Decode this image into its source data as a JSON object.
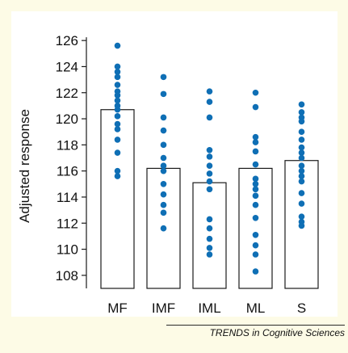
{
  "footer": {
    "journal": "TRENDS in Cognitive Sciences"
  },
  "chart_data": {
    "type": "bar",
    "title": "",
    "xlabel": "",
    "ylabel": "Adjusted response",
    "ylim": [
      107,
      127
    ],
    "yticks": [
      108,
      110,
      112,
      114,
      116,
      118,
      120,
      122,
      124,
      126
    ],
    "categories": [
      "MF",
      "IMF",
      "IML",
      "ML",
      "S"
    ],
    "values": [
      120.7,
      116.2,
      115.1,
      116.2,
      116.8
    ],
    "points": [
      [
        125.6,
        124.0,
        123.6,
        123.2,
        122.6,
        122.1,
        121.8,
        121.4,
        121.0,
        120.7,
        120.2,
        119.6,
        119.2,
        118.4,
        117.4,
        116.0,
        115.6
      ],
      [
        123.2,
        121.9,
        120.1,
        119.1,
        118.0,
        117.0,
        116.4,
        116.0,
        115.0,
        114.2,
        113.4,
        112.8,
        111.6
      ],
      [
        122.1,
        121.3,
        120.1,
        117.6,
        117.1,
        116.4,
        115.8,
        115.2,
        114.6,
        112.3,
        111.6,
        110.8,
        110.1,
        109.6
      ],
      [
        122.0,
        120.9,
        118.6,
        118.2,
        117.5,
        116.5,
        115.4,
        115.0,
        114.6,
        114.1,
        113.4,
        112.4,
        111.1,
        110.3,
        109.6,
        108.3
      ],
      [
        121.1,
        120.5,
        120.1,
        119.8,
        119.0,
        118.4,
        117.8,
        117.4,
        117.0,
        116.4,
        116.0,
        115.6,
        115.2,
        114.3,
        113.5,
        112.5,
        112.1,
        111.8
      ]
    ],
    "colors": {
      "points": "#0f6fb5",
      "bars": "#ffffff",
      "axis": "#1a1a1a",
      "background": "#fdfbe6"
    },
    "grid": false,
    "legend": "none"
  }
}
